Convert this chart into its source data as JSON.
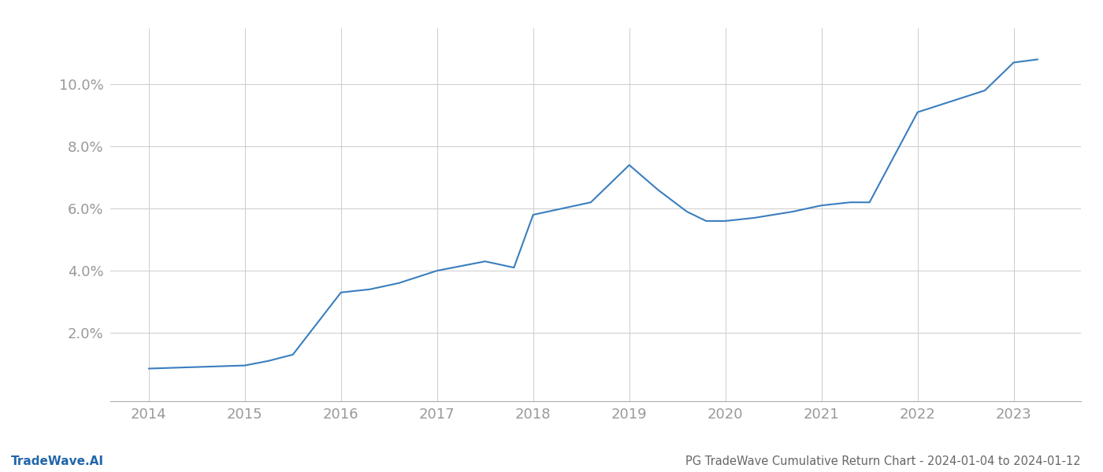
{
  "x": [
    2014,
    2014.5,
    2015,
    2015.25,
    2015.5,
    2016,
    2016.3,
    2016.6,
    2017,
    2017.5,
    2017.8,
    2018,
    2018.3,
    2018.6,
    2019,
    2019.3,
    2019.6,
    2019.8,
    2020,
    2020.3,
    2020.5,
    2020.7,
    2021,
    2021.3,
    2021.5,
    2022,
    2022.2,
    2022.5,
    2022.7,
    2023,
    2023.25
  ],
  "y": [
    0.0085,
    0.009,
    0.0095,
    0.011,
    0.013,
    0.033,
    0.034,
    0.036,
    0.04,
    0.043,
    0.041,
    0.058,
    0.06,
    0.062,
    0.074,
    0.066,
    0.059,
    0.056,
    0.056,
    0.057,
    0.058,
    0.059,
    0.061,
    0.062,
    0.062,
    0.091,
    0.093,
    0.096,
    0.098,
    0.107,
    0.108
  ],
  "line_color": "#3a7ebf",
  "line_width": 1.5,
  "background_color": "#ffffff",
  "grid_color": "#cccccc",
  "title": "PG TradeWave Cumulative Return Chart - 2024-01-04 to 2024-01-12",
  "title_fontsize": 10.5,
  "title_color": "#666666",
  "watermark": "TradeWave.AI",
  "watermark_color": "#2266aa",
  "watermark_fontsize": 11,
  "xlabel_color": "#999999",
  "ylabel_color": "#999999",
  "tick_fontsize": 13,
  "xlim": [
    2013.6,
    2023.7
  ],
  "ylim": [
    -0.002,
    0.118
  ],
  "xticks": [
    2014,
    2015,
    2016,
    2017,
    2018,
    2019,
    2020,
    2021,
    2022,
    2023
  ],
  "yticks": [
    0.02,
    0.04,
    0.06,
    0.08,
    0.1
  ],
  "ytick_labels": [
    "2.0%",
    "4.0%",
    "6.0%",
    "8.0%",
    "10.0%"
  ]
}
